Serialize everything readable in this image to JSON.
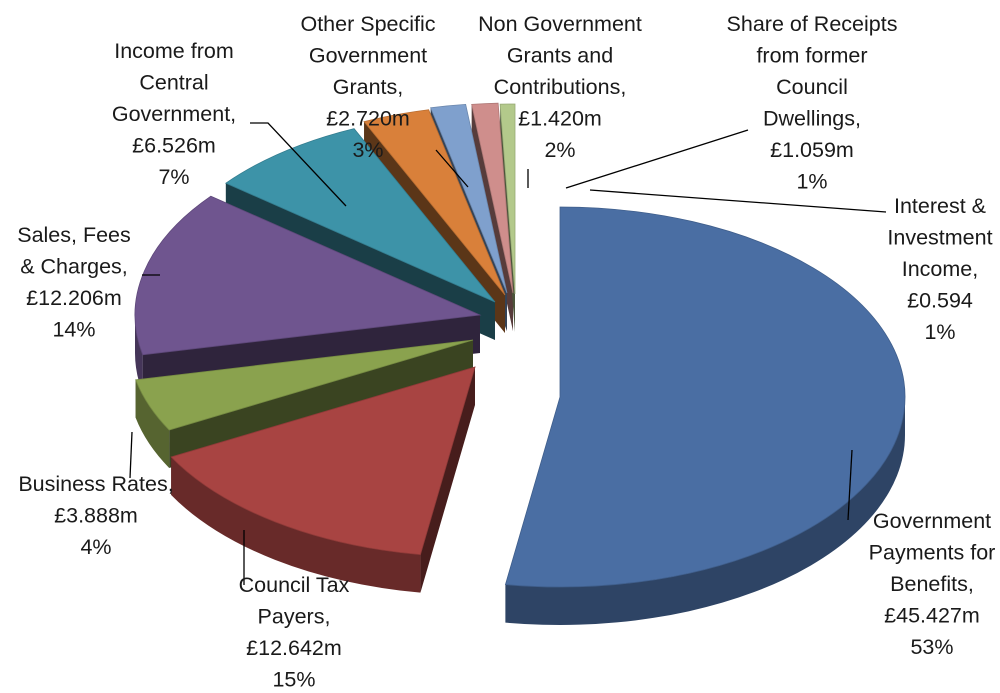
{
  "chart_data": {
    "type": "pie",
    "style": "3d-exploded",
    "title": "",
    "legend": "none",
    "start_angle_deg": 90,
    "direction": "clockwise",
    "slices": [
      {
        "id": "gov-benefits",
        "name": "Government Payments for Benefits",
        "label_lines": [
          "Government",
          "Payments for",
          "Benefits,"
        ],
        "value_text": "£45.427m",
        "value": 45.427,
        "percent_text": "53%",
        "color": "#4A6EA3"
      },
      {
        "id": "council-tax",
        "name": "Council Tax Payers",
        "label_lines": [
          "Council Tax",
          "Payers,"
        ],
        "value_text": "£12.642m",
        "value": 12.642,
        "percent_text": "15%",
        "color": "#A84442"
      },
      {
        "id": "business-rates",
        "name": "Business Rates",
        "label_lines": [
          "Business Rates,"
        ],
        "value_text": "£3.888m",
        "value": 3.888,
        "percent_text": "4%",
        "color": "#8AA24E"
      },
      {
        "id": "sales-fees",
        "name": "Sales, Fees & Charges",
        "label_lines": [
          "Sales, Fees",
          "& Charges,"
        ],
        "value_text": "£12.206m",
        "value": 12.206,
        "percent_text": "14%",
        "color": "#6F558F"
      },
      {
        "id": "central-gov",
        "name": "Income from Central Government",
        "label_lines": [
          "Income from",
          "Central",
          "Government,"
        ],
        "value_text": "£6.526m",
        "value": 6.526,
        "percent_text": "7%",
        "color": "#3D93A8"
      },
      {
        "id": "other-specific",
        "name": "Other Specific Government Grants",
        "label_lines": [
          "Other Specific",
          "Government",
          "Grants,"
        ],
        "value_text": "£2.720m",
        "value": 2.72,
        "percent_text": "3%",
        "color": "#D9803A"
      },
      {
        "id": "non-gov",
        "name": "Non Government Grants and Contributions",
        "label_lines": [
          "Non Government",
          "Grants and",
          "Contributions,"
        ],
        "value_text": "£1.420m",
        "value": 1.42,
        "percent_text": "2%",
        "color": "#7FA0CD"
      },
      {
        "id": "council-dwellings",
        "name": "Share of Receipts from former Council Dwellings",
        "label_lines": [
          "Share of Receipts",
          "from former",
          "Council",
          "Dwellings,"
        ],
        "value_text": "£1.059m",
        "value": 1.059,
        "percent_text": "1%",
        "color": "#CF8E8C"
      },
      {
        "id": "interest",
        "name": "Interest & Investment Income",
        "label_lines": [
          "Interest &",
          "Investment",
          "Income,"
        ],
        "value_text": "£0.594",
        "value": 0.594,
        "percent_text": "1%",
        "color": "#B3C98B"
      }
    ]
  }
}
